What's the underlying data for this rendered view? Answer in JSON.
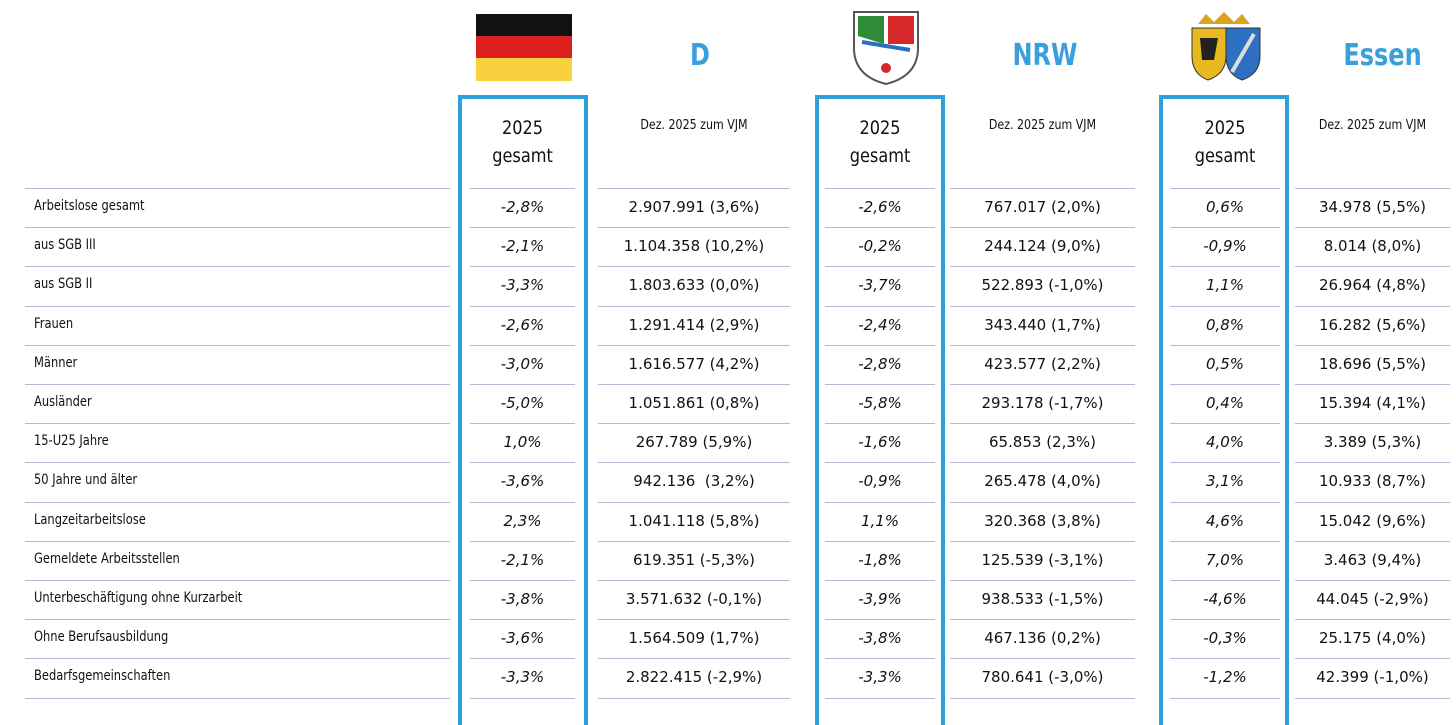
{
  "regions": [
    {
      "name": "D",
      "year": "2025",
      "total": "gesamt",
      "change": "Dez. 2025 zum VJM"
    },
    {
      "name": "NRW",
      "year": "2025",
      "total": "gesamt",
      "change": "Dez. 2025 zum VJM"
    },
    {
      "name": "Essen",
      "year": "2025",
      "total": "gesamt",
      "change": "Dez. 2025 zum VJM"
    }
  ],
  "rows": [
    {
      "label": "Arbeitslose gesamt",
      "values": [
        "-2,8%",
        "2.907.991 (3,6%)",
        "-2,6%",
        "767.017 (2,0%)",
        "0,6%",
        "34.978 (5,5%)"
      ]
    },
    {
      "label": "aus SGB III",
      "values": [
        "-2,1%",
        "1.104.358 (10,2%)",
        "-0,2%",
        "244.124 (9,0%)",
        "-0,9%",
        "8.014 (8,0%)"
      ]
    },
    {
      "label": "aus SGB II",
      "values": [
        "-3,3%",
        "1.803.633 (0,0%)",
        "-3,7%",
        "522.893 (-1,0%)",
        "1,1%",
        "26.964 (4,8%)"
      ]
    },
    {
      "label": "Frauen",
      "values": [
        "-2,6%",
        "1.291.414 (2,9%)",
        "-2,4%",
        "343.440 (1,7%)",
        "0,8%",
        "16.282 (5,6%)"
      ]
    },
    {
      "label": "Männer",
      "values": [
        "-3,0%",
        "1.616.577 (4,2%)",
        "-2,8%",
        "423.577 (2,2%)",
        "0,5%",
        "18.696 (5,5%)"
      ]
    },
    {
      "label": "Ausländer",
      "values": [
        "-5,0%",
        "1.051.861 (0,8%)",
        "-5,8%",
        "293.178 (-1,7%)",
        "0,4%",
        "15.394 (4,1%)"
      ]
    },
    {
      "label": "15-U25 Jahre",
      "values": [
        "1,0%",
        "267.789 (5,9%)",
        "-1,6%",
        "65.853 (2,3%)",
        "4,0%",
        "3.389 (5,3%)"
      ]
    },
    {
      "label": "50 Jahre und älter",
      "values": [
        "-3,6%",
        "942.136  (3,2%)",
        "-0,9%",
        "265.478 (4,0%)",
        "3,1%",
        "10.933 (8,7%)"
      ]
    },
    {
      "label": "Langzeitarbeitslose",
      "values": [
        "2,3%",
        "1.041.118 (5,8%)",
        "1,1%",
        "320.368 (3,8%)",
        "4,6%",
        "15.042 (9,6%)"
      ]
    },
    {
      "label": "Gemeldete Arbeitsstellen",
      "values": [
        "-2,1%",
        "619.351 (-5,3%)",
        "-1,8%",
        "125.539 (-3,1%)",
        "7,0%",
        "3.463 (9,4%)"
      ]
    },
    {
      "label": "Unterbeschäftigung ohne Kurzarbeit",
      "values": [
        "-3,8%",
        "3.571.632 (-0,1%)",
        "-3,9%",
        "938.533 (-1,5%)",
        "-4,6%",
        "44.045 (-2,9%)"
      ]
    },
    {
      "label": "Ohne Berufsausbildung",
      "values": [
        "-3,6%",
        "1.564.509 (1,7%)",
        "-3,8%",
        "467.136 (0,2%)",
        "-0,3%",
        "25.175 (4,0%)"
      ]
    },
    {
      "label": "Bedarfsgemeinschaften",
      "values": [
        "-3,3%",
        "2.822.415 (-2,9%)",
        "-3,3%",
        "780.641 (-3,0%)",
        "-1,2%",
        "42.399 (-1,0%)"
      ]
    }
  ]
}
